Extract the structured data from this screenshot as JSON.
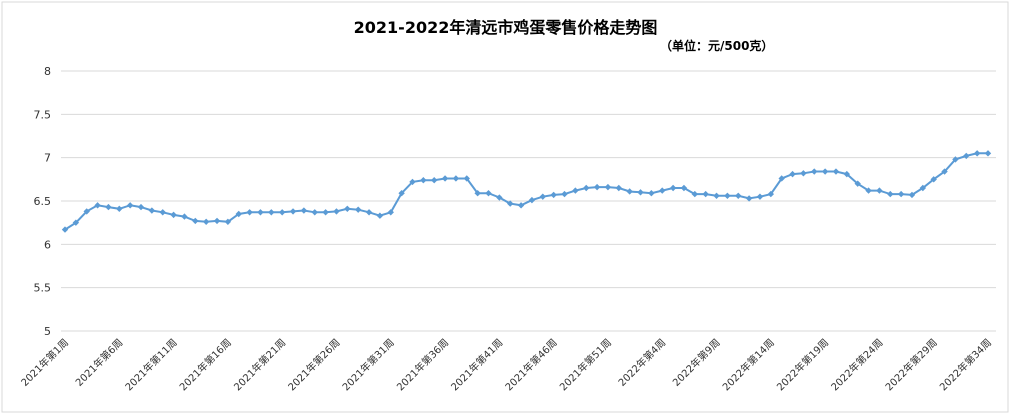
{
  "chart_data": {
    "type": "line",
    "title": "2021-2022年清远市鸡蛋零售价格走势图",
    "subtitle": "（单位：元/500克）",
    "xlabel": "",
    "ylabel": "",
    "ylim": [
      5,
      8
    ],
    "yticks": [
      "5",
      "5.5",
      "6",
      "6.5",
      "7",
      "7.5",
      "8"
    ],
    "grid": true,
    "legend": "none",
    "line_color": "#5B9BD5",
    "x": [
      "2021年第1周",
      "2021年第2周",
      "2021年第3周",
      "2021年第4周",
      "2021年第5周",
      "2021年第6周",
      "2021年第7周",
      "2021年第8周",
      "2021年第9周",
      "2021年第10周",
      "2021年第11周",
      "2021年第12周",
      "2021年第13周",
      "2021年第14周",
      "2021年第15周",
      "2021年第16周",
      "2021年第17周",
      "2021年第18周",
      "2021年第19周",
      "2021年第20周",
      "2021年第21周",
      "2021年第22周",
      "2021年第23周",
      "2021年第24周",
      "2021年第25周",
      "2021年第26周",
      "2021年第27周",
      "2021年第28周",
      "2021年第29周",
      "2021年第30周",
      "2021年第31周",
      "2021年第32周",
      "2021年第33周",
      "2021年第34周",
      "2021年第35周",
      "2021年第36周",
      "2021年第37周",
      "2021年第38周",
      "2021年第39周",
      "2021年第40周",
      "2021年第41周",
      "2021年第42周",
      "2021年第43周",
      "2021年第44周",
      "2021年第45周",
      "2021年第46周",
      "2021年第47周",
      "2021年第48周",
      "2021年第49周",
      "2021年第50周",
      "2021年第51周",
      "2021年第52周",
      "2022年第1周",
      "2022年第2周",
      "2022年第3周",
      "2022年第4周",
      "2022年第5周",
      "2022年第6周",
      "2022年第7周",
      "2022年第8周",
      "2022年第9周",
      "2022年第10周",
      "2022年第11周",
      "2022年第12周",
      "2022年第13周",
      "2022年第14周",
      "2022年第15周",
      "2022年第16周",
      "2022年第17周",
      "2022年第18周",
      "2022年第19周",
      "2022年第20周",
      "2022年第21周",
      "2022年第22周",
      "2022年第23周",
      "2022年第24周",
      "2022年第25周",
      "2022年第26周",
      "2022年第27周",
      "2022年第28周",
      "2022年第29周",
      "2022年第30周",
      "2022年第31周",
      "2022年第32周",
      "2022年第33周",
      "2022年第34周"
    ],
    "x_labels_shown": [
      "2021年第1周",
      "2021年第6周",
      "2021年第11周",
      "2021年第16周",
      "2021年第21周",
      "2021年第26周",
      "2021年第31周",
      "2021年第36周",
      "2021年第41周",
      "2021年第46周",
      "2021年第51周",
      "2022年第4周",
      "2022年第9周",
      "2022年第14周",
      "2022年第19周",
      "2022年第24周",
      "2022年第29周",
      "2022年第34周"
    ],
    "values": [
      6.17,
      6.25,
      6.38,
      6.45,
      6.43,
      6.41,
      6.45,
      6.43,
      6.39,
      6.37,
      6.34,
      6.32,
      6.27,
      6.26,
      6.27,
      6.26,
      6.35,
      6.37,
      6.37,
      6.37,
      6.37,
      6.38,
      6.39,
      6.37,
      6.37,
      6.38,
      6.41,
      6.4,
      6.37,
      6.33,
      6.37,
      6.59,
      6.72,
      6.74,
      6.74,
      6.76,
      6.76,
      6.76,
      6.59,
      6.59,
      6.54,
      6.47,
      6.45,
      6.51,
      6.55,
      6.57,
      6.58,
      6.62,
      6.65,
      6.66,
      6.66,
      6.65,
      6.61,
      6.6,
      6.59,
      6.62,
      6.65,
      6.65,
      6.58,
      6.58,
      6.56,
      6.56,
      6.56,
      6.53,
      6.55,
      6.58,
      6.76,
      6.81,
      6.82,
      6.84,
      6.84,
      6.84,
      6.81,
      6.7,
      6.62,
      6.62,
      6.58,
      6.58,
      6.57,
      6.65,
      6.75,
      6.84,
      6.98,
      7.02,
      7.05,
      7.05
    ]
  }
}
